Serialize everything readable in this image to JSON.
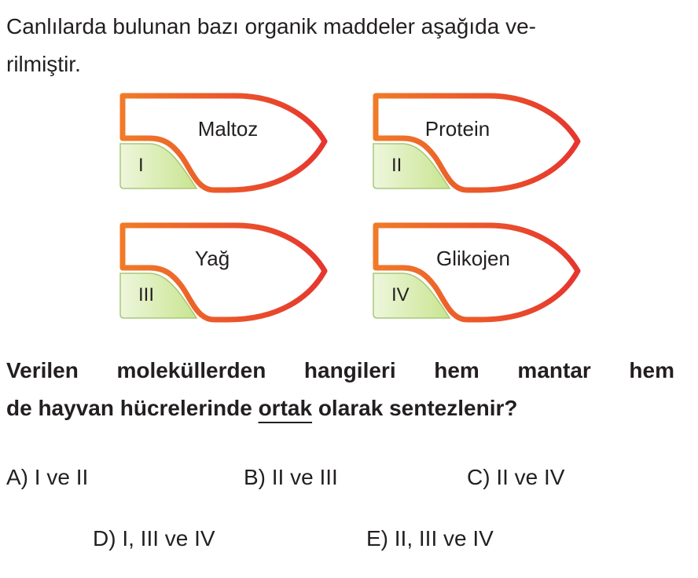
{
  "intro": {
    "line1": "Canlılarda bulunan bazı organik maddeler aşağıda ve-",
    "line2": "rilmiştir."
  },
  "molecules": [
    {
      "numeral": "I",
      "name": "Maltoz"
    },
    {
      "numeral": "II",
      "name": "Protein"
    },
    {
      "numeral": "III",
      "name": "Yağ"
    },
    {
      "numeral": "IV",
      "name": "Glikojen"
    }
  ],
  "question": {
    "line1": "Verilen moleküllerden hangileri hem mantar hem",
    "line2_pre": "de hayvan hücrelerinde ",
    "line2_underlined": "ortak",
    "line2_post": " olarak sentezlenir?"
  },
  "options": [
    {
      "label": "A) I ve II"
    },
    {
      "label": "B) II ve III"
    },
    {
      "label": "C) II ve IV"
    },
    {
      "label": "D) I, III ve IV"
    },
    {
      "label": "E) II, III ve IV"
    }
  ],
  "colors": {
    "outline_start": "#f07a28",
    "outline_end": "#e6362e",
    "label_fill": "#d6eba4"
  }
}
